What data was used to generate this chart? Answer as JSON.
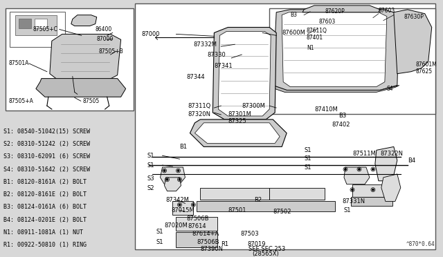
{
  "bg_color": "#d8d8d8",
  "white": "#ffffff",
  "black": "#000000",
  "dark_gray": "#333333",
  "part_number_stamp": "^870*0.64",
  "legend_items": [
    "S1: 08540-51042(15) SCREW",
    "S2: 08310-51242 (2) SCREW",
    "S3: 08310-62091 (6) SCREW",
    "S4: 08310-51642 (2) SCREW",
    "B1: 08120-8161A (2) BOLT",
    "B2: 08120-8161E (2) BOLT",
    "B3: 08124-0161A (6) BOLT",
    "B4: 08124-0201E (2) BOLT",
    "N1: 08911-1081A (1) NUT",
    "R1: 00922-50810 (1) RING"
  ]
}
